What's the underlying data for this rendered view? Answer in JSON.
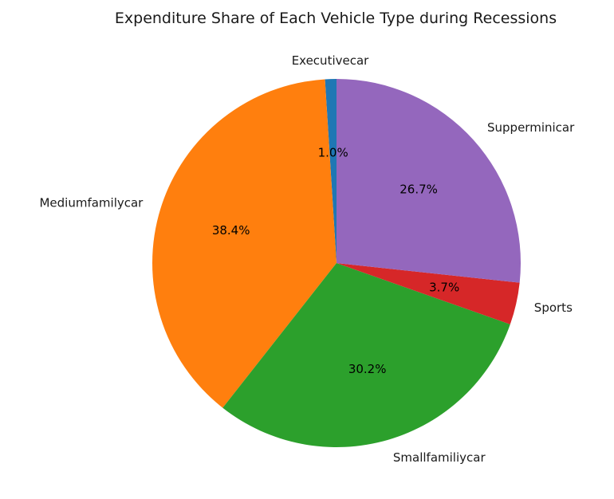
{
  "chart_data": {
    "type": "pie",
    "title": "Expenditure Share of Each Vehicle Type during Recessions",
    "categories": [
      "Executivecar",
      "Mediumfamilycar",
      "Smallfamiliycar",
      "Sports",
      "Supperminicar"
    ],
    "values": [
      1.0,
      38.4,
      30.2,
      3.7,
      26.7
    ],
    "value_labels": [
      "1.0%",
      "38.4%",
      "30.2%",
      "3.7%",
      "26.7%"
    ],
    "colors": [
      "#1f77b4",
      "#ff7f0e",
      "#2ca02c",
      "#d62728",
      "#9467bd"
    ],
    "start_angle_deg": 90,
    "direction": "counterclockwise",
    "legend": "none"
  }
}
